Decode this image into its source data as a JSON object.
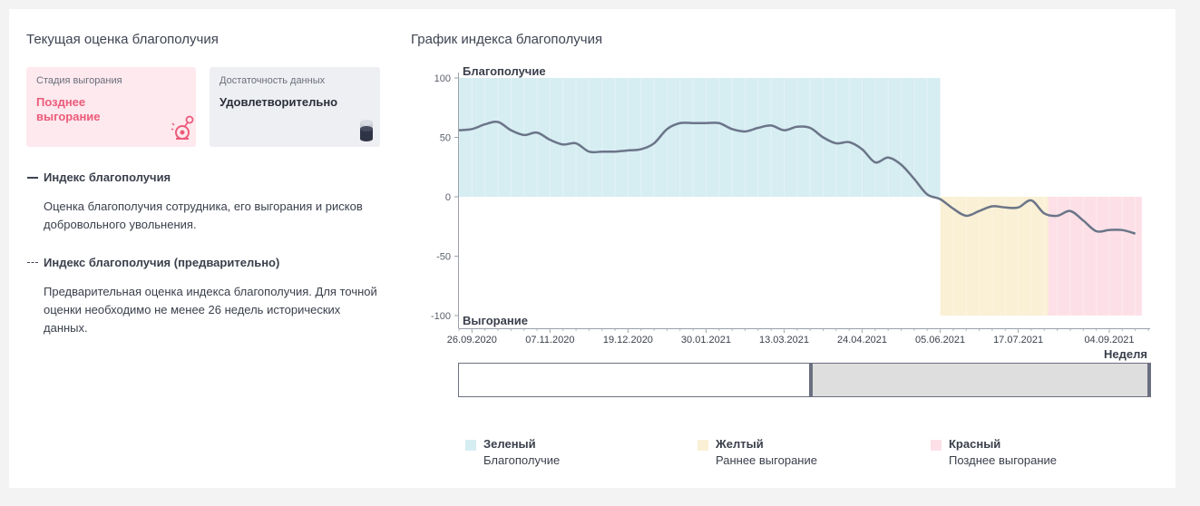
{
  "left_panel": {
    "title": "Текущая оценка благополучия",
    "stage_card": {
      "label": "Стадия выгорания",
      "value": "Позднее выгорание",
      "icon": "alarm-bell-icon"
    },
    "data_card": {
      "label": "Достаточность данных",
      "value": "Удовлетворительно",
      "icon": "database-icon"
    },
    "legend": [
      {
        "title": "Индекс благополучия",
        "description": "Оценка благополучия сотрудника, его выгорания и рисков добровольного увольнения."
      },
      {
        "title": "Индекс благополучия (предварительно)",
        "description": "Предварительная оценка индекса благополучия. Для точной оценки необходимо не менее 26 недель исторических данных."
      }
    ]
  },
  "right_panel": {
    "title": "График индекса благополучия",
    "zone_legend": [
      {
        "name": "Зеленый",
        "description": "Благополучие"
      },
      {
        "name": "Желтый",
        "description": "Раннее выгорание"
      },
      {
        "name": "Красный",
        "description": "Позднее выгорание"
      }
    ]
  },
  "colors": {
    "green_zone": "#d6edf2",
    "yellow_zone": "#faf0d5",
    "red_zone": "#fde0e7",
    "line": "#6b7588",
    "stage_accent": "#ec5b7a"
  },
  "chart_data": {
    "type": "line",
    "top_label": "Благополучие",
    "bottom_label": "Выгорание",
    "xlabel": "Неделя",
    "ylim": [
      -100,
      100
    ],
    "y_ticks": [
      100,
      50,
      0,
      -50,
      -100
    ],
    "x_tick_labels": [
      "26.09.2020",
      "07.11.2020",
      "19.12.2020",
      "30.01.2021",
      "13.03.2021",
      "24.04.2021",
      "05.06.2021",
      "17.07.2021",
      "04.09.2021"
    ],
    "zones": [
      {
        "name": "Зеленый",
        "from_week": 0,
        "to_week": 37,
        "y_from": 0,
        "y_to": 100
      },
      {
        "name": "Желтый",
        "from_week": 37,
        "to_week": 45.3,
        "y_from": -100,
        "y_to": 0
      },
      {
        "name": "Красный",
        "from_week": 45.3,
        "to_week": 52.5,
        "y_from": -100,
        "y_to": 0
      }
    ],
    "series": [
      {
        "points": [
          [
            0,
            56
          ],
          [
            1,
            57
          ],
          [
            2,
            61
          ],
          [
            3,
            63
          ],
          [
            4,
            56
          ],
          [
            5,
            52
          ],
          [
            6,
            54
          ],
          [
            7,
            48
          ],
          [
            8,
            44
          ],
          [
            9,
            45
          ],
          [
            10,
            38
          ],
          [
            11,
            38
          ],
          [
            12,
            38
          ],
          [
            13,
            39
          ],
          [
            14,
            40
          ],
          [
            15,
            45
          ],
          [
            16,
            57
          ],
          [
            17,
            62
          ],
          [
            18,
            62
          ],
          [
            19,
            62
          ],
          [
            20,
            62
          ],
          [
            21,
            57
          ],
          [
            22,
            55
          ],
          [
            23,
            58
          ],
          [
            24,
            60
          ],
          [
            25,
            56
          ],
          [
            26,
            59
          ],
          [
            27,
            58
          ],
          [
            28,
            50
          ],
          [
            29,
            45
          ],
          [
            30,
            46
          ],
          [
            31,
            40
          ],
          [
            32,
            29
          ],
          [
            33,
            33
          ],
          [
            34,
            27
          ],
          [
            35,
            15
          ],
          [
            36,
            2
          ],
          [
            37,
            -2
          ],
          [
            38,
            -10
          ],
          [
            39,
            -16
          ],
          [
            40,
            -12
          ],
          [
            41,
            -8
          ],
          [
            42,
            -9
          ],
          [
            43,
            -9
          ],
          [
            44,
            -3
          ],
          [
            45,
            -14
          ],
          [
            46,
            -16
          ],
          [
            47,
            -12
          ],
          [
            48,
            -20
          ],
          [
            49,
            -29
          ],
          [
            50,
            -28
          ],
          [
            51,
            -28
          ],
          [
            52,
            -31
          ]
        ]
      }
    ]
  }
}
